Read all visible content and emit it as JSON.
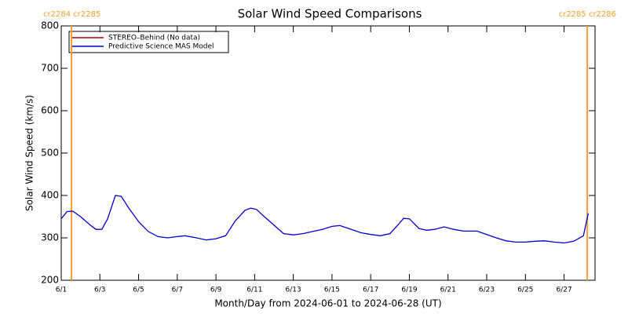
{
  "chart_data": {
    "type": "line",
    "title": "Solar Wind Speed Comparisons",
    "x_label": "Month/Day from 2024-06-01 to 2024-06-28 (UT)",
    "y_label": "Solar Wind Speed (km/s)",
    "xlim": [
      1,
      28.6
    ],
    "ylim": [
      200,
      800
    ],
    "yticks": [
      200,
      300,
      400,
      500,
      600,
      700,
      800
    ],
    "xticks": [
      {
        "value": 1,
        "label": "6/1"
      },
      {
        "value": 3,
        "label": "6/3"
      },
      {
        "value": 5,
        "label": "6/5"
      },
      {
        "value": 7,
        "label": "6/7"
      },
      {
        "value": 9,
        "label": "6/9"
      },
      {
        "value": 11,
        "label": "6/11"
      },
      {
        "value": 13,
        "label": "6/13"
      },
      {
        "value": 15,
        "label": "6/15"
      },
      {
        "value": 17,
        "label": "6/17"
      },
      {
        "value": 19,
        "label": "6/19"
      },
      {
        "value": 21,
        "label": "6/21"
      },
      {
        "value": 23,
        "label": "6/23"
      },
      {
        "value": 25,
        "label": "6/25"
      },
      {
        "value": 27,
        "label": "6/27"
      }
    ],
    "legend": "upper left",
    "markers": [
      {
        "x": 1.53,
        "label": "cr2284 cr2285",
        "color": "#f0a030"
      },
      {
        "x": 28.2,
        "label": "cr2285 cr2286",
        "color": "#f0a030"
      }
    ],
    "series": [
      {
        "name": "STEREO–Behind (No data)",
        "color": "#b00000",
        "x": [],
        "values": []
      },
      {
        "name": "Predictive Science MAS Model",
        "color": "#0000cc",
        "x": [
          1.0,
          1.3,
          1.6,
          2.0,
          2.5,
          2.8,
          3.1,
          3.4,
          3.8,
          4.1,
          4.5,
          5.0,
          5.5,
          6.0,
          6.5,
          7.0,
          7.4,
          8.0,
          8.5,
          9.0,
          9.5,
          10.0,
          10.5,
          10.8,
          11.1,
          11.5,
          12.0,
          12.5,
          13.0,
          13.5,
          14.0,
          14.5,
          15.0,
          15.4,
          16.0,
          16.5,
          17.0,
          17.5,
          18.0,
          18.4,
          18.7,
          19.0,
          19.5,
          19.9,
          20.3,
          20.8,
          21.3,
          21.8,
          22.5,
          23.0,
          23.5,
          24.0,
          24.5,
          25.0,
          25.5,
          26.0,
          26.5,
          27.0,
          27.5,
          28.0,
          28.25
        ],
        "values": [
          345,
          362,
          363,
          350,
          330,
          320,
          320,
          345,
          400,
          398,
          370,
          338,
          315,
          303,
          300,
          303,
          305,
          300,
          295,
          298,
          305,
          340,
          365,
          370,
          367,
          350,
          330,
          310,
          307,
          310,
          315,
          320,
          327,
          329,
          320,
          312,
          308,
          305,
          310,
          330,
          346,
          345,
          322,
          318,
          320,
          326,
          320,
          316,
          316,
          308,
          300,
          293,
          290,
          290,
          292,
          293,
          290,
          288,
          292,
          305,
          358
        ]
      }
    ]
  }
}
